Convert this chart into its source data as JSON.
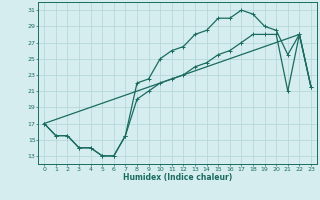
{
  "xlabel": "Humidex (Indice chaleur)",
  "bg_color": "#d6edf0",
  "line_color": "#1a6b60",
  "grid_color": "#b0d4d8",
  "xlim": [
    -0.5,
    23.5
  ],
  "ylim": [
    12,
    32
  ],
  "xticks": [
    0,
    1,
    2,
    3,
    4,
    5,
    6,
    7,
    8,
    9,
    10,
    11,
    12,
    13,
    14,
    15,
    16,
    17,
    18,
    19,
    20,
    21,
    22,
    23
  ],
  "yticks": [
    13,
    15,
    17,
    19,
    21,
    23,
    25,
    27,
    29,
    31
  ],
  "line1_x": [
    0,
    1,
    2,
    3,
    4,
    5,
    6,
    7,
    8,
    9,
    10,
    11,
    12,
    13,
    14,
    15,
    16,
    17,
    18,
    19,
    20,
    21,
    22,
    23
  ],
  "line1_y": [
    17,
    15.5,
    15.5,
    14,
    14,
    13,
    13,
    15.5,
    22,
    22.5,
    25,
    26,
    26.5,
    28,
    28.5,
    30,
    30,
    31,
    30.5,
    29,
    28.5,
    25.5,
    28,
    21.5
  ],
  "line2_x": [
    0,
    1,
    2,
    3,
    4,
    5,
    6,
    7,
    8,
    9,
    10,
    11,
    12,
    13,
    14,
    15,
    16,
    17,
    18,
    19,
    20,
    21,
    22,
    23
  ],
  "line2_y": [
    17,
    15.5,
    15.5,
    14,
    14,
    13,
    13,
    15.5,
    20,
    21,
    22,
    22.5,
    23,
    24,
    24.5,
    25.5,
    26,
    27,
    28,
    28,
    28,
    21,
    28,
    21.5
  ],
  "line3_x": [
    0,
    22,
    23
  ],
  "line3_y": [
    17,
    28,
    21.5
  ]
}
